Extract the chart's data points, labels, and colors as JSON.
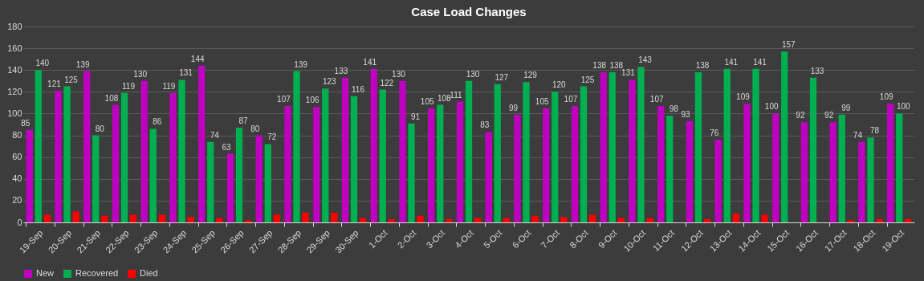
{
  "chart_data": {
    "type": "bar",
    "title": "Case Load Changes",
    "categories": [
      "19-Sep",
      "20-Sep",
      "21-Sep",
      "22-Sep",
      "23-Sep",
      "24-Sep",
      "25-Sep",
      "26-Sep",
      "27-Sep",
      "28-Sep",
      "29-Sep",
      "30-Sep",
      "1-Oct",
      "2-Oct",
      "3-Oct",
      "4-Oct",
      "5-Oct",
      "6-Oct",
      "7-Oct",
      "8-Oct",
      "9-Oct",
      "10-Oct",
      "11-Oct",
      "12-Oct",
      "13-Oct",
      "14-Oct",
      "15-Oct",
      "16-Oct",
      "17-Oct",
      "18-Oct",
      "19-Oct"
    ],
    "series": [
      {
        "name": "New",
        "color": "#c000c0",
        "values": [
          85,
          121,
          139,
          108,
          130,
          119,
          144,
          63,
          80,
          107,
          106,
          133,
          141,
          130,
          105,
          111,
          83,
          99,
          105,
          107,
          138,
          131,
          107,
          93,
          76,
          109,
          100,
          92,
          92,
          74,
          109
        ],
        "value_labels": [
          "85",
          "121",
          "139",
          "108",
          "130",
          "119",
          "144",
          "63",
          "80",
          "107",
          "106",
          "133",
          "141",
          "130",
          "105",
          "111",
          "83",
          "99",
          "105",
          "107",
          "138",
          "131",
          "107",
          "93",
          "76",
          "109",
          "100",
          "92",
          "92",
          "74",
          "109"
        ]
      },
      {
        "name": "Recovered",
        "color": "#00b050",
        "values": [
          140,
          125,
          80,
          119,
          86,
          131,
          74,
          87,
          72,
          139,
          123,
          116,
          122,
          91,
          108,
          130,
          127,
          129,
          120,
          125,
          138,
          143,
          98,
          138,
          141,
          141,
          157,
          133,
          99,
          78,
          100
        ],
        "value_labels": [
          "140",
          "125",
          "80",
          "119",
          "86",
          "131",
          "74",
          "87",
          "72",
          "139",
          "123",
          "116",
          "122",
          "91",
          "108",
          "130",
          "127",
          "129",
          "120",
          "125",
          "138",
          "143",
          "98",
          "138",
          "141",
          "141",
          "157",
          "133",
          "99",
          "78",
          "100"
        ]
      },
      {
        "name": "Died",
        "color": "#ff0000",
        "values": [
          7,
          10,
          6,
          7,
          7,
          5,
          4,
          2,
          7,
          9,
          9,
          4,
          3,
          6,
          3,
          4,
          4,
          6,
          5,
          7,
          4,
          4,
          0,
          3,
          8,
          7,
          0,
          0,
          2,
          3,
          3
        ]
      }
    ],
    "ylim": [
      0,
      180
    ],
    "yticks": [
      0,
      20,
      40,
      60,
      80,
      100,
      120,
      140,
      160,
      180
    ],
    "grid": "y",
    "legend": "bottom"
  }
}
